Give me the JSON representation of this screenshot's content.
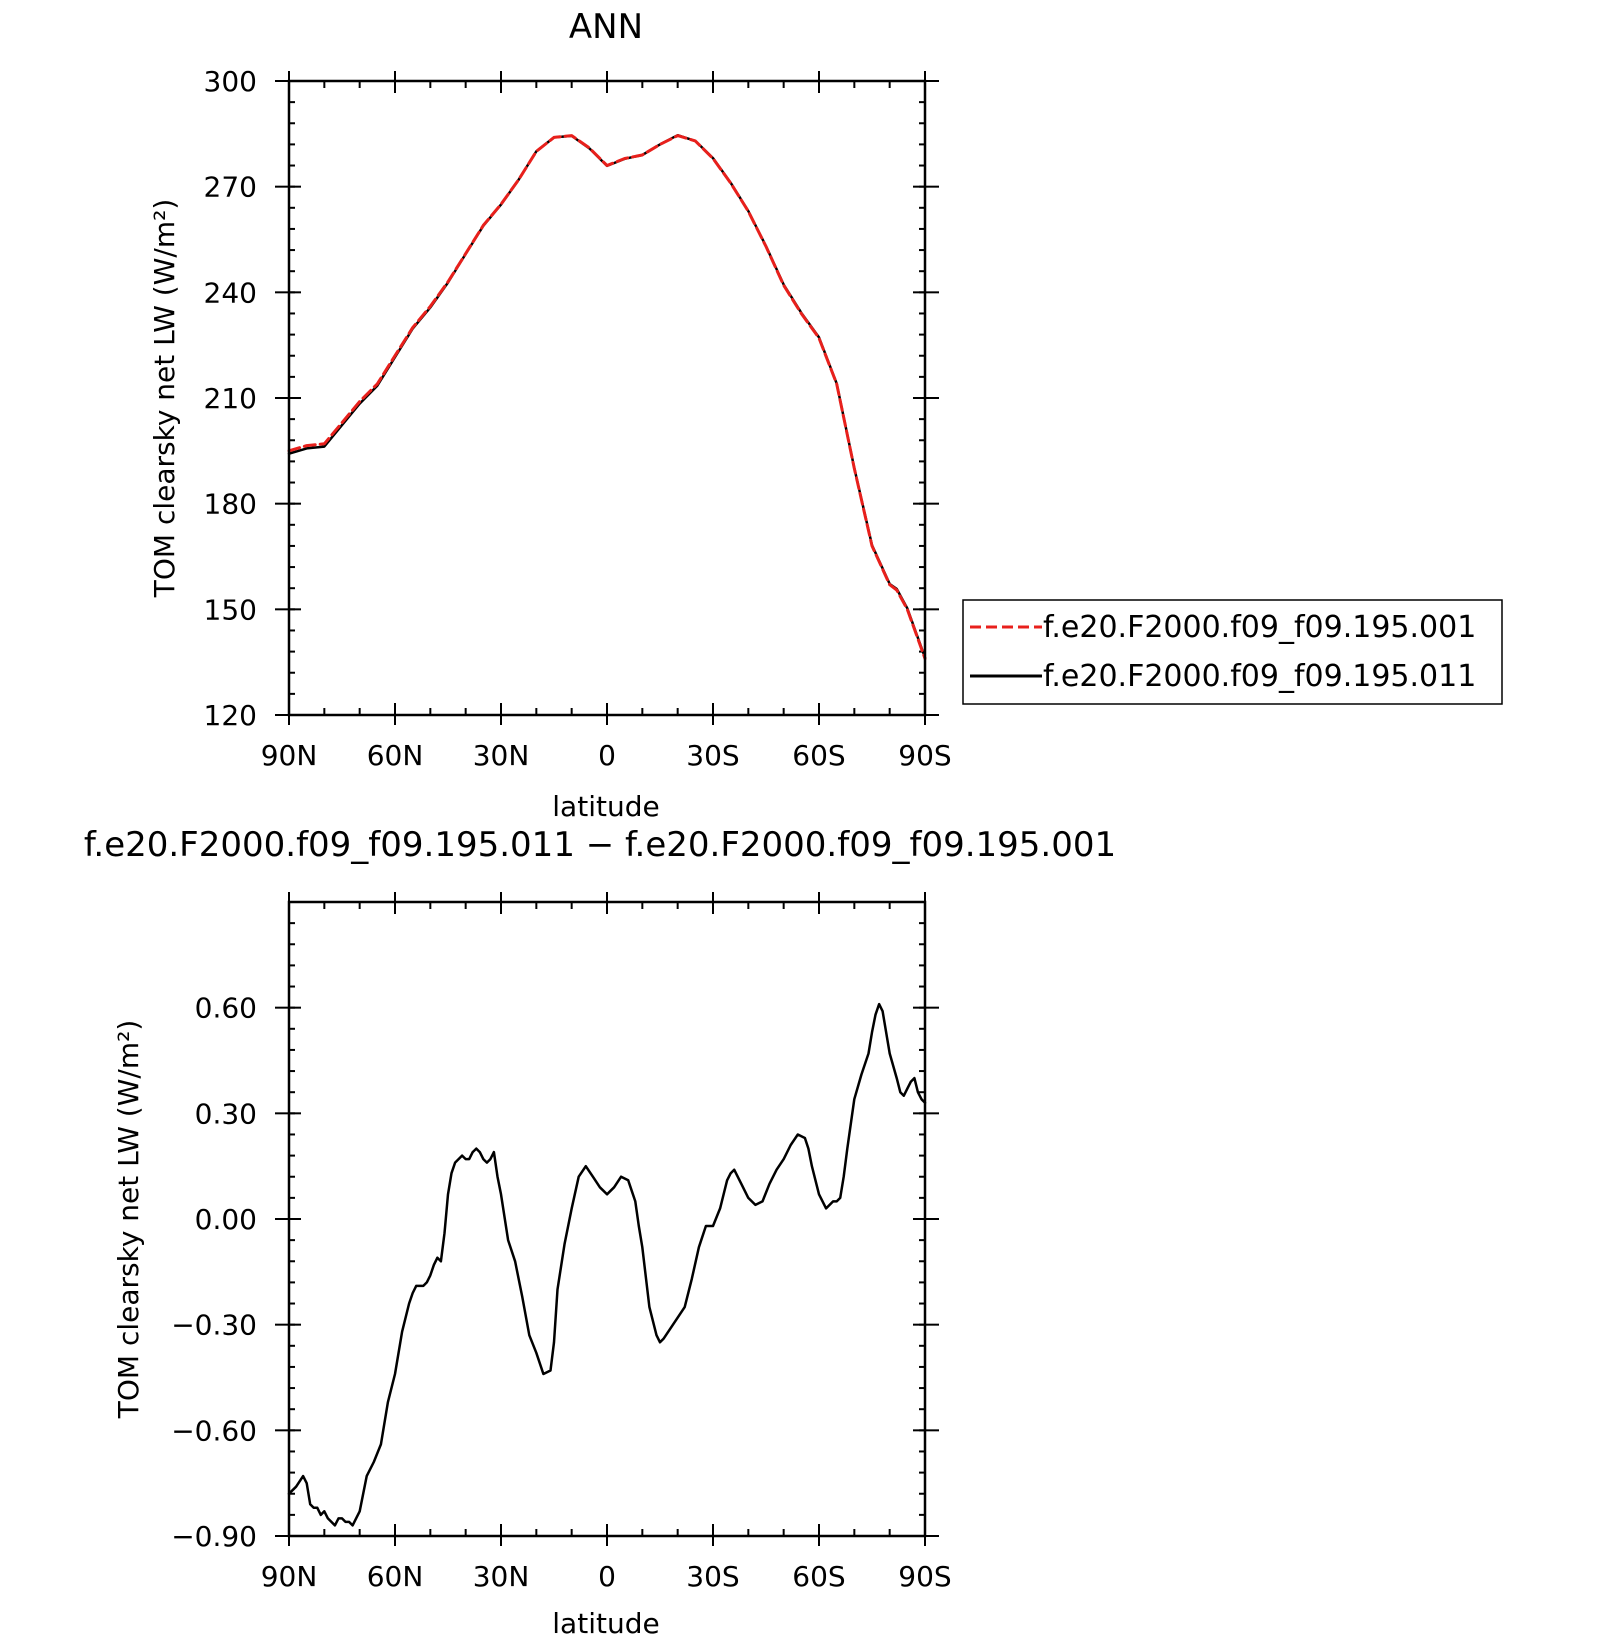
{
  "chart_data": [
    {
      "type": "line",
      "title": "ANN",
      "xlabel": "latitude",
      "ylabel": "TOM clearsky net LW (W/m²)",
      "xlim": [
        90,
        -90
      ],
      "ylim": [
        120,
        300
      ],
      "xticks": [
        90,
        60,
        30,
        0,
        -30,
        -60,
        -90
      ],
      "xtick_labels": [
        "90N",
        "60N",
        "30N",
        "0",
        "30S",
        "60S",
        "90S"
      ],
      "yticks": [
        120,
        150,
        180,
        210,
        240,
        270,
        300
      ],
      "ytick_labels": [
        "120",
        "150",
        "180",
        "210",
        "240",
        "270",
        "300"
      ],
      "legend": {
        "placement": "right"
      },
      "series": [
        {
          "name": "f.e20.F2000.f09_f09.195.001",
          "color": "#e8201c",
          "style": "dashed",
          "x": [
            90,
            85,
            80,
            75,
            70,
            65,
            60,
            55,
            50,
            45,
            40,
            35,
            30,
            25,
            20,
            15,
            10,
            5,
            0,
            -5,
            -10,
            -15,
            -20,
            -25,
            -30,
            -35,
            -40,
            -45,
            -50,
            -55,
            -60,
            -65,
            -70,
            -75,
            -80,
            -82,
            -85,
            -90
          ],
          "y": [
            195,
            196.5,
            197,
            203,
            209,
            214,
            222,
            230,
            236,
            243,
            251,
            259,
            265,
            272,
            280,
            284,
            284.5,
            281,
            276,
            278,
            279,
            282,
            284.5,
            283,
            278,
            271,
            263,
            253,
            242,
            234,
            227,
            214,
            190,
            168,
            157,
            155.5,
            150,
            136
          ]
        },
        {
          "name": "f.e20.F2000.f09_f09.195.011",
          "color": "#000000",
          "style": "solid",
          "x": [
            90,
            85,
            80,
            75,
            70,
            65,
            60,
            55,
            50,
            45,
            40,
            35,
            30,
            25,
            20,
            15,
            10,
            5,
            0,
            -5,
            -10,
            -15,
            -20,
            -25,
            -30,
            -35,
            -40,
            -45,
            -50,
            -55,
            -60,
            -65,
            -70,
            -75,
            -80,
            -82,
            -85,
            -90
          ],
          "y": [
            194.2,
            195.7,
            196.2,
            202.3,
            208.4,
            213.5,
            221.6,
            229.7,
            235.7,
            242.8,
            250.9,
            258.9,
            264.9,
            272,
            280,
            284,
            284.4,
            280.9,
            275.9,
            277.9,
            279,
            282,
            284.6,
            283,
            278.1,
            271.1,
            263.1,
            253.1,
            242.2,
            234.2,
            227.2,
            214.1,
            190.1,
            168.2,
            157.2,
            155.8,
            150.3,
            136.3
          ]
        }
      ]
    },
    {
      "type": "line",
      "title": "f.e20.F2000.f09_f09.195.011 − f.e20.F2000.f09_f09.195.001",
      "xlabel": "latitude",
      "ylabel": "TOM clearsky net LW (W/m²)",
      "xlim": [
        90,
        -90
      ],
      "ylim": [
        -0.9,
        0.9
      ],
      "xticks": [
        90,
        60,
        30,
        0,
        -30,
        -60,
        -90
      ],
      "xtick_labels": [
        "90N",
        "60N",
        "30N",
        "0",
        "30S",
        "60S",
        "90S"
      ],
      "yticks": [
        -0.9,
        -0.6,
        -0.3,
        0,
        0.3,
        0.6
      ],
      "ytick_labels": [
        "−0.90",
        "−0.60",
        "−0.30",
        "0.00",
        "0.30",
        "0.60"
      ],
      "series": [
        {
          "color": "#000000",
          "style": "solid",
          "x": [
            90,
            88,
            86,
            85,
            84,
            83,
            82,
            81,
            80,
            79,
            78,
            77,
            76,
            75,
            74,
            73,
            72,
            71,
            70,
            68,
            66,
            64,
            62,
            60,
            58,
            56,
            55,
            54,
            53,
            52,
            51,
            50,
            49,
            48,
            47,
            46,
            45,
            44,
            43,
            42,
            41,
            40,
            39,
            38,
            37,
            36,
            35,
            34,
            33,
            32,
            31,
            30,
            28,
            26,
            24,
            22,
            20,
            18,
            16,
            15,
            14,
            12,
            10,
            8,
            6,
            4,
            2,
            1,
            0,
            -2,
            -4,
            -6,
            -8,
            -9,
            -10,
            -12,
            -14,
            -15,
            -16,
            -18,
            -20,
            -22,
            -24,
            -26,
            -28,
            -30,
            -32,
            -34,
            -35,
            -36,
            -38,
            -40,
            -42,
            -44,
            -46,
            -48,
            -50,
            -52,
            -54,
            -56,
            -57,
            -58,
            -60,
            -62,
            -64,
            -65,
            -66,
            -67,
            -68,
            -70,
            -72,
            -74,
            -75,
            -76,
            -77,
            -78,
            -80,
            -82,
            -83,
            -84,
            -85,
            -86,
            -87,
            -88,
            -89,
            -90
          ],
          "y": [
            -0.78,
            -0.76,
            -0.73,
            -0.75,
            -0.81,
            -0.82,
            -0.82,
            -0.84,
            -0.83,
            -0.85,
            -0.86,
            -0.87,
            -0.85,
            -0.85,
            -0.86,
            -0.86,
            -0.87,
            -0.85,
            -0.83,
            -0.73,
            -0.69,
            -0.64,
            -0.52,
            -0.44,
            -0.32,
            -0.24,
            -0.21,
            -0.19,
            -0.19,
            -0.19,
            -0.18,
            -0.16,
            -0.13,
            -0.11,
            -0.12,
            -0.04,
            0.07,
            0.13,
            0.16,
            0.17,
            0.18,
            0.17,
            0.17,
            0.19,
            0.2,
            0.19,
            0.17,
            0.16,
            0.17,
            0.19,
            0.12,
            0.07,
            -0.06,
            -0.12,
            -0.22,
            -0.33,
            -0.38,
            -0.44,
            -0.43,
            -0.35,
            -0.2,
            -0.07,
            0.03,
            0.12,
            0.15,
            0.12,
            0.09,
            0.08,
            0.07,
            0.09,
            0.12,
            0.11,
            0.05,
            -0.02,
            -0.08,
            -0.25,
            -0.33,
            -0.35,
            -0.34,
            -0.31,
            -0.28,
            -0.25,
            -0.17,
            -0.08,
            -0.02,
            -0.02,
            0.03,
            0.11,
            0.13,
            0.14,
            0.1,
            0.06,
            0.04,
            0.05,
            0.1,
            0.14,
            0.17,
            0.21,
            0.24,
            0.23,
            0.2,
            0.15,
            0.07,
            0.03,
            0.05,
            0.05,
            0.06,
            0.12,
            0.2,
            0.34,
            0.41,
            0.47,
            0.53,
            0.58,
            0.61,
            0.59,
            0.47,
            0.4,
            0.36,
            0.35,
            0.37,
            0.39,
            0.4,
            0.36,
            0.34,
            0.33
          ]
        }
      ]
    }
  ]
}
